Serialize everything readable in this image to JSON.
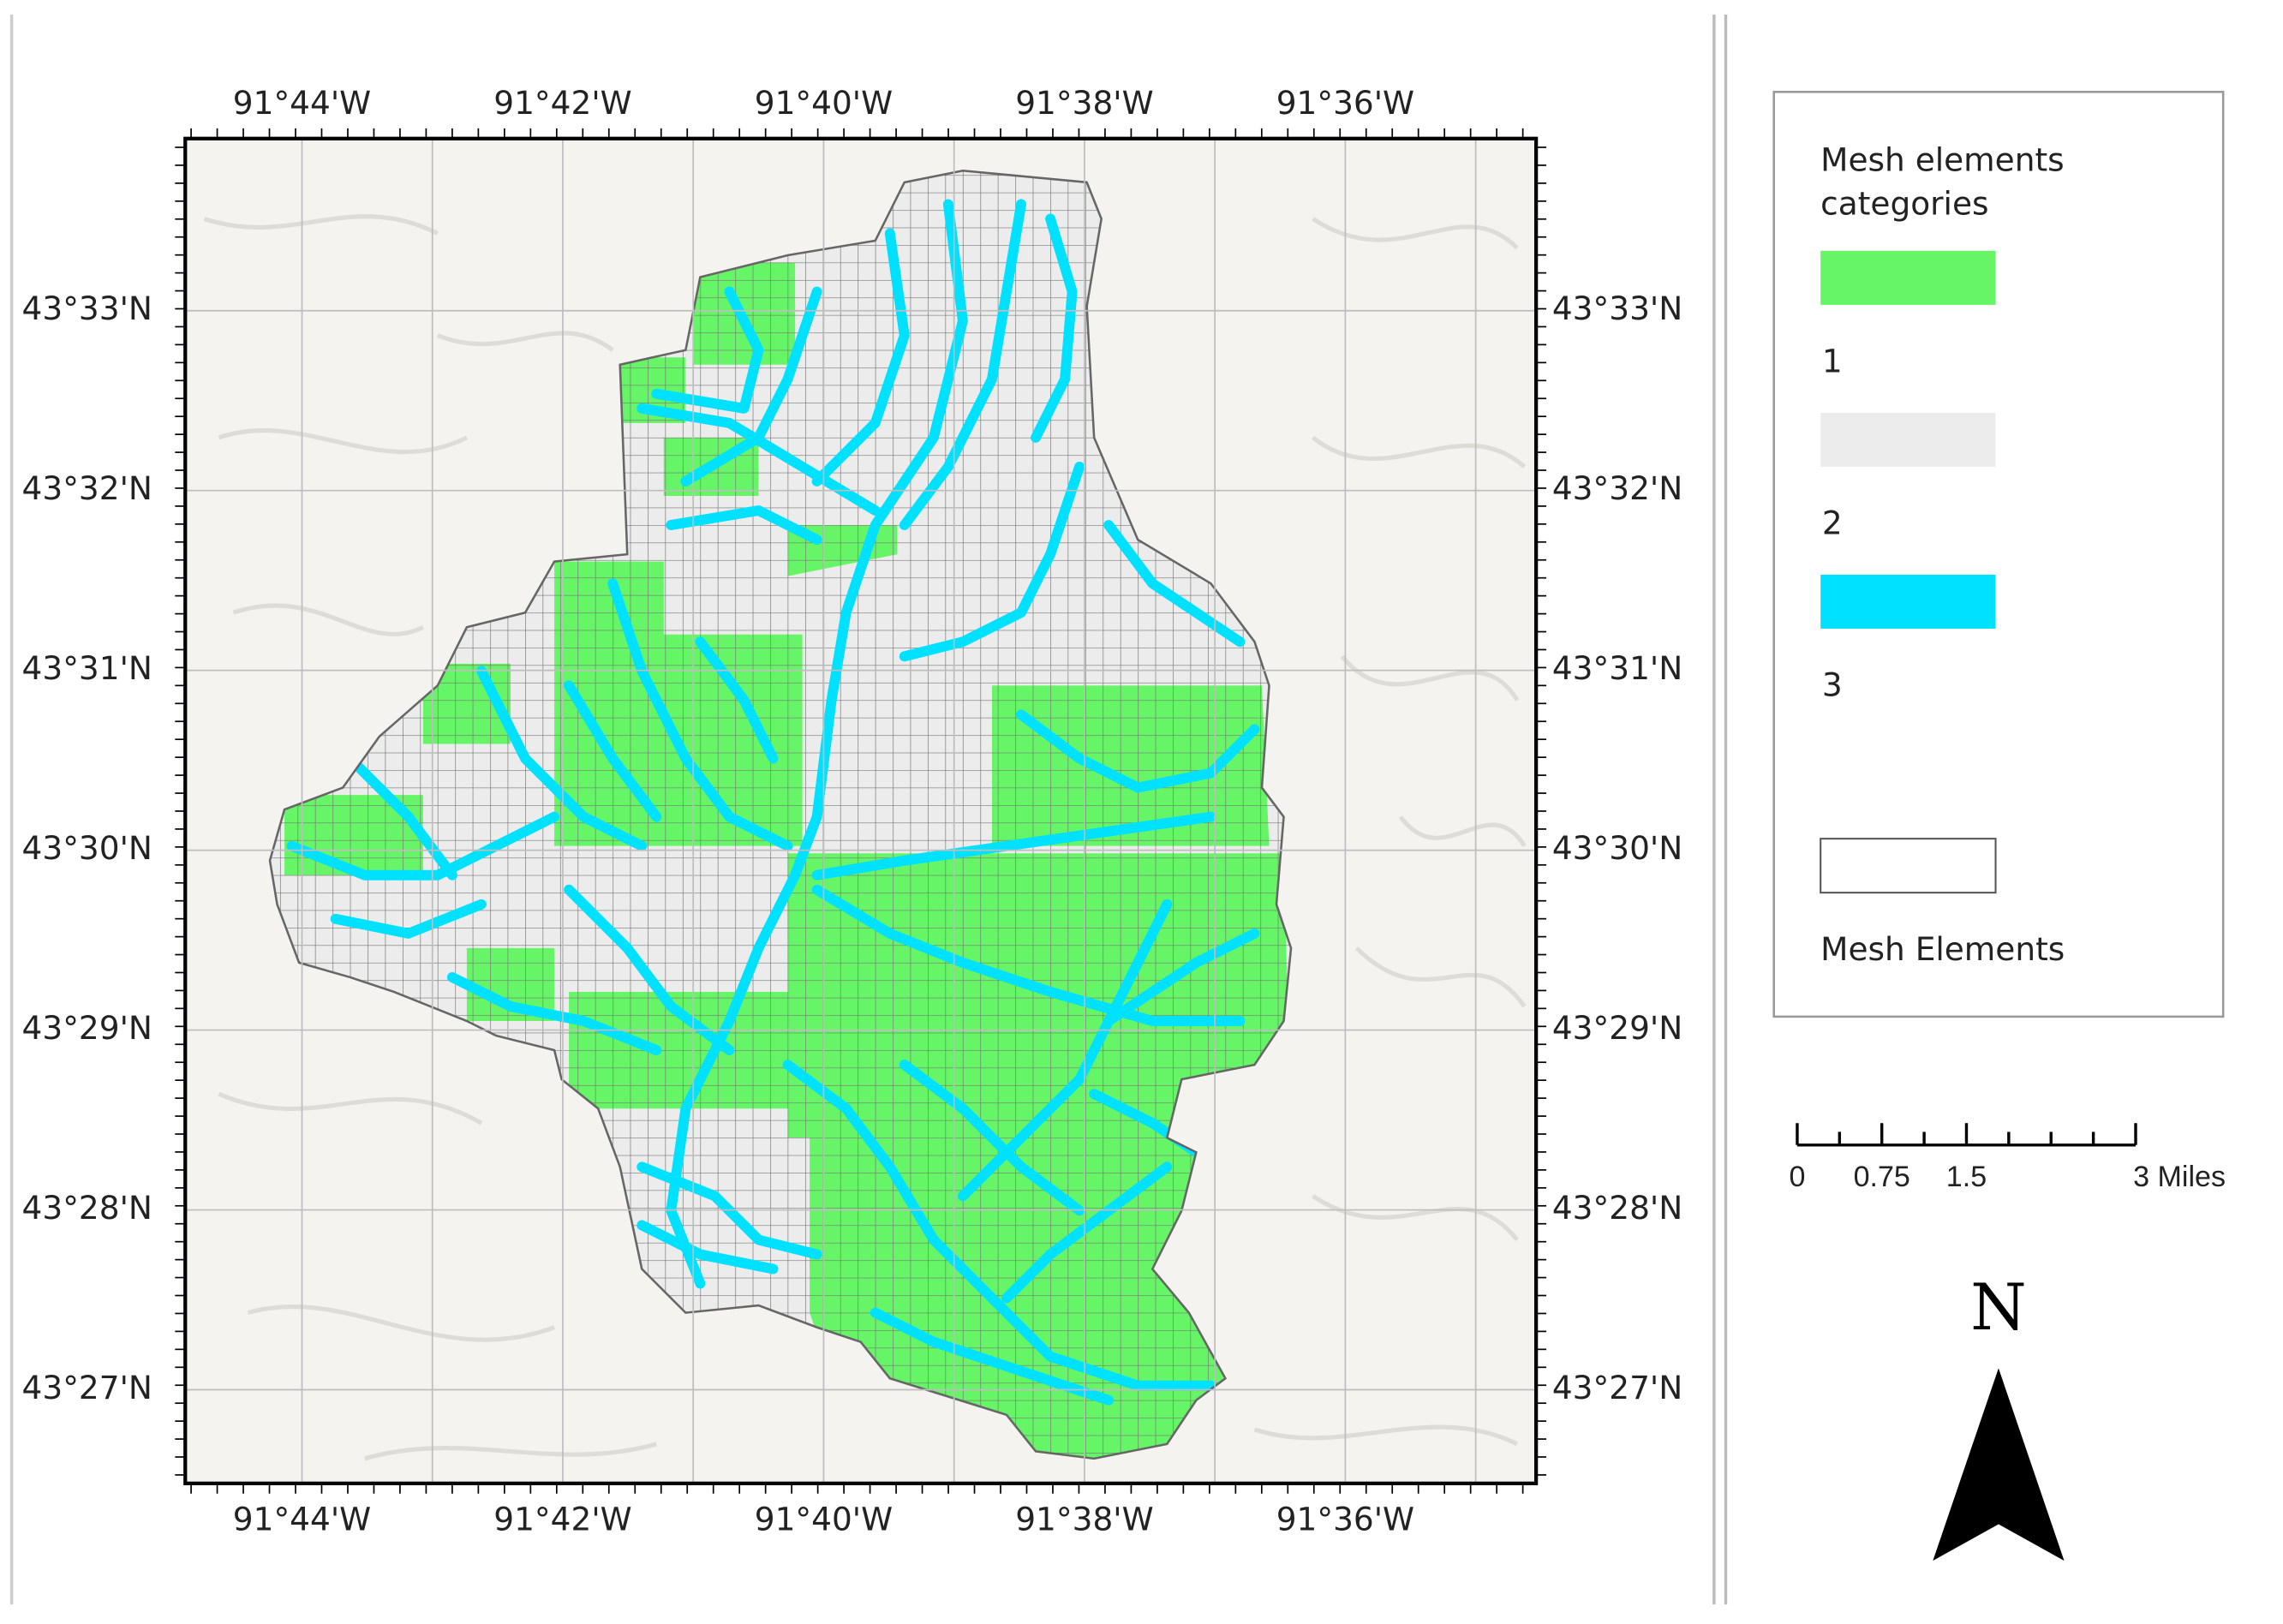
{
  "map": {
    "longitude_labels": [
      "91°44'W",
      "91°42'W",
      "91°40'W",
      "91°38'W",
      "91°36'W"
    ],
    "latitude_labels": [
      "43°33'N",
      "43°32'N",
      "43°31'N",
      "43°30'N",
      "43°29'N",
      "43°28'N",
      "43°27'N"
    ]
  },
  "legend": {
    "title_lines": [
      "Mesh elements",
      "categories"
    ],
    "items": [
      {
        "label": "1",
        "color": "#66f566"
      },
      {
        "label": "2",
        "color": "#ececec"
      },
      {
        "label": "3",
        "color": "#00e1ff"
      }
    ],
    "outline_label": "Mesh Elements"
  },
  "scale_bar": {
    "labels": [
      "0",
      "0.75",
      "1.5",
      "3 Miles"
    ]
  },
  "north_arrow": "N"
}
